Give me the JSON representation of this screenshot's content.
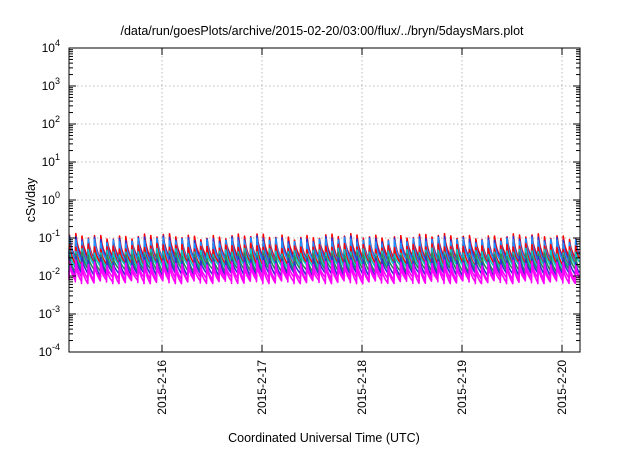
{
  "chart_data": {
    "type": "line",
    "title": "/data/run/goesPlots/archive/2015-02-20/03:00/flux/../bryn/5daysMars.plot",
    "xlabel": "Coordinated Universal Time (UTC)",
    "ylabel": "cSv/day",
    "yscale": "log",
    "ylim": [
      0.0001,
      10000
    ],
    "xlim": [
      -0.93,
      4.18
    ],
    "x_ticks": [
      {
        "value": 0,
        "label": "2015-2-16"
      },
      {
        "value": 1,
        "label": "2015-2-17"
      },
      {
        "value": 2,
        "label": "2015-2-18"
      },
      {
        "value": 3,
        "label": "2015-2-19"
      },
      {
        "value": 4,
        "label": "2015-2-20"
      }
    ],
    "y_ticks": [
      {
        "value": 0.0001,
        "base": "10",
        "exp": "-4"
      },
      {
        "value": 0.001,
        "base": "10",
        "exp": "-3"
      },
      {
        "value": 0.01,
        "base": "10",
        "exp": "-2"
      },
      {
        "value": 0.1,
        "base": "10",
        "exp": "-1"
      },
      {
        "value": 1,
        "base": "10",
        "exp": "0"
      },
      {
        "value": 10,
        "base": "10",
        "exp": "1"
      },
      {
        "value": 100,
        "base": "10",
        "exp": "2"
      },
      {
        "value": 1000,
        "base": "10",
        "exp": "3"
      },
      {
        "value": 10000,
        "base": "10",
        "exp": "4"
      }
    ],
    "grid": true,
    "pulse_period_days": 0.0625,
    "series": [
      {
        "color": "#ff0000",
        "peak": 0.11,
        "trough": 0.03
      },
      {
        "color": "#3333cc",
        "peak": 0.095,
        "trough": 0.026
      },
      {
        "color": "#1e90ff",
        "peak": 0.085,
        "trough": 0.024
      },
      {
        "color": "#ff0000",
        "peak": 0.06,
        "trough": 0.02
      },
      {
        "color": "#00c8c8",
        "peak": 0.045,
        "trough": 0.018
      },
      {
        "color": "#2e8b57",
        "peak": 0.035,
        "trough": 0.014
      },
      {
        "color": "#3333cc",
        "peak": 0.028,
        "trough": 0.011
      },
      {
        "color": "#ff00ff",
        "peak": 0.022,
        "trough": 0.0085
      },
      {
        "color": "#ff00ff",
        "peak": 0.018,
        "trough": 0.007
      }
    ]
  }
}
